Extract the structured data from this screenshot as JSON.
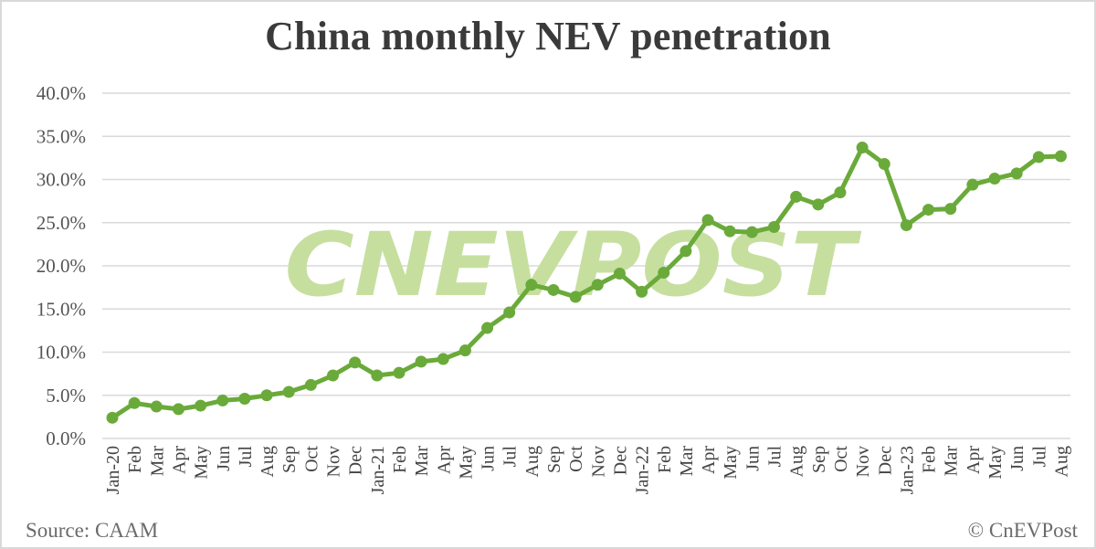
{
  "title": "China monthly NEV penetration",
  "source": "Source: CAAM",
  "copyright": "© CnEVPost",
  "watermark": "CNEVPOST",
  "colors": {
    "line": "#6aaa3a",
    "marker": "#6aaa3a",
    "watermark": "#c6df9f",
    "grid": "#d9d9d9"
  },
  "chart_data": {
    "type": "line",
    "title": "China monthly NEV penetration",
    "xlabel": "",
    "ylabel": "",
    "ylim": [
      0,
      40
    ],
    "yticks": [
      "0.0%",
      "5.0%",
      "10.0%",
      "15.0%",
      "20.0%",
      "25.0%",
      "30.0%",
      "35.0%",
      "40.0%"
    ],
    "grid": true,
    "legend": "none",
    "categories": [
      "Jan-20",
      "Feb",
      "Mar",
      "Apr",
      "May",
      "Jun",
      "Jul",
      "Aug",
      "Sep",
      "Oct",
      "Nov",
      "Dec",
      "Jan-21",
      "Feb",
      "Mar",
      "Apr",
      "May",
      "Jun",
      "Jul",
      "Aug",
      "Sep",
      "Oct",
      "Nov",
      "Dec",
      "Jan-22",
      "Feb",
      "Mar",
      "Apr",
      "May",
      "Jun",
      "Jul",
      "Aug",
      "Sep",
      "Oct",
      "Nov",
      "Dec",
      "Jan-23",
      "Feb",
      "Mar",
      "Apr",
      "May",
      "Jun",
      "Jul",
      "Aug"
    ],
    "series": [
      {
        "name": "NEV penetration (%)",
        "values": [
          2.4,
          4.1,
          3.7,
          3.4,
          3.8,
          4.4,
          4.6,
          5.0,
          5.4,
          6.2,
          7.3,
          8.8,
          7.3,
          7.6,
          8.9,
          9.2,
          10.2,
          12.8,
          14.6,
          17.8,
          17.2,
          16.4,
          17.8,
          19.1,
          17.0,
          19.2,
          21.7,
          25.3,
          24.0,
          23.9,
          24.5,
          28.0,
          27.1,
          28.5,
          33.7,
          31.8,
          24.7,
          26.5,
          26.6,
          29.4,
          30.1,
          30.7,
          32.6,
          32.7
        ]
      }
    ],
    "annotations": [
      "Source: CAAM",
      "© CnEVPost"
    ]
  }
}
